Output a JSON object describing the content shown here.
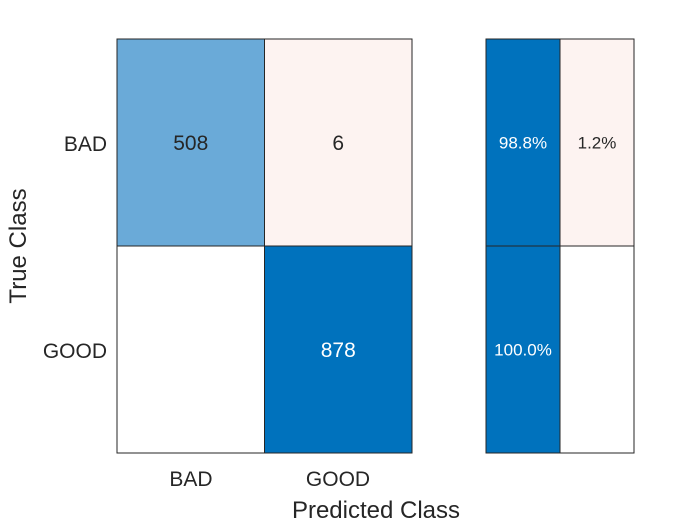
{
  "chart_data": [
    {
      "type": "heatmap",
      "title": "",
      "xlabel": "Predicted Class",
      "ylabel": "True Class",
      "x_categories": [
        "BAD",
        "GOOD"
      ],
      "y_categories": [
        "BAD",
        "GOOD"
      ],
      "cells": [
        {
          "row": 0,
          "col": 0,
          "value": 508,
          "label": "508"
        },
        {
          "row": 0,
          "col": 1,
          "value": 6,
          "label": "6"
        },
        {
          "row": 1,
          "col": 0,
          "value": 0,
          "label": ""
        },
        {
          "row": 1,
          "col": 1,
          "value": 878,
          "label": "878"
        }
      ]
    },
    {
      "type": "heatmap",
      "title": "",
      "description": "row summary (per true class)",
      "cells": [
        {
          "row": 0,
          "col": 0,
          "value": 98.8,
          "label": "98.8%"
        },
        {
          "row": 0,
          "col": 1,
          "value": 1.2,
          "label": "1.2%"
        },
        {
          "row": 1,
          "col": 0,
          "value": 100.0,
          "label": "100.0%"
        },
        {
          "row": 1,
          "col": 1,
          "value": 0,
          "label": ""
        }
      ]
    }
  ],
  "colors": {
    "strong_blue": "#0072BD",
    "medium_blue": "#6AAAD8",
    "light_pink": "#FDF3F1",
    "white": "#FFFFFF",
    "text_dark": "#262626",
    "text_light": "#FFFFFF"
  }
}
